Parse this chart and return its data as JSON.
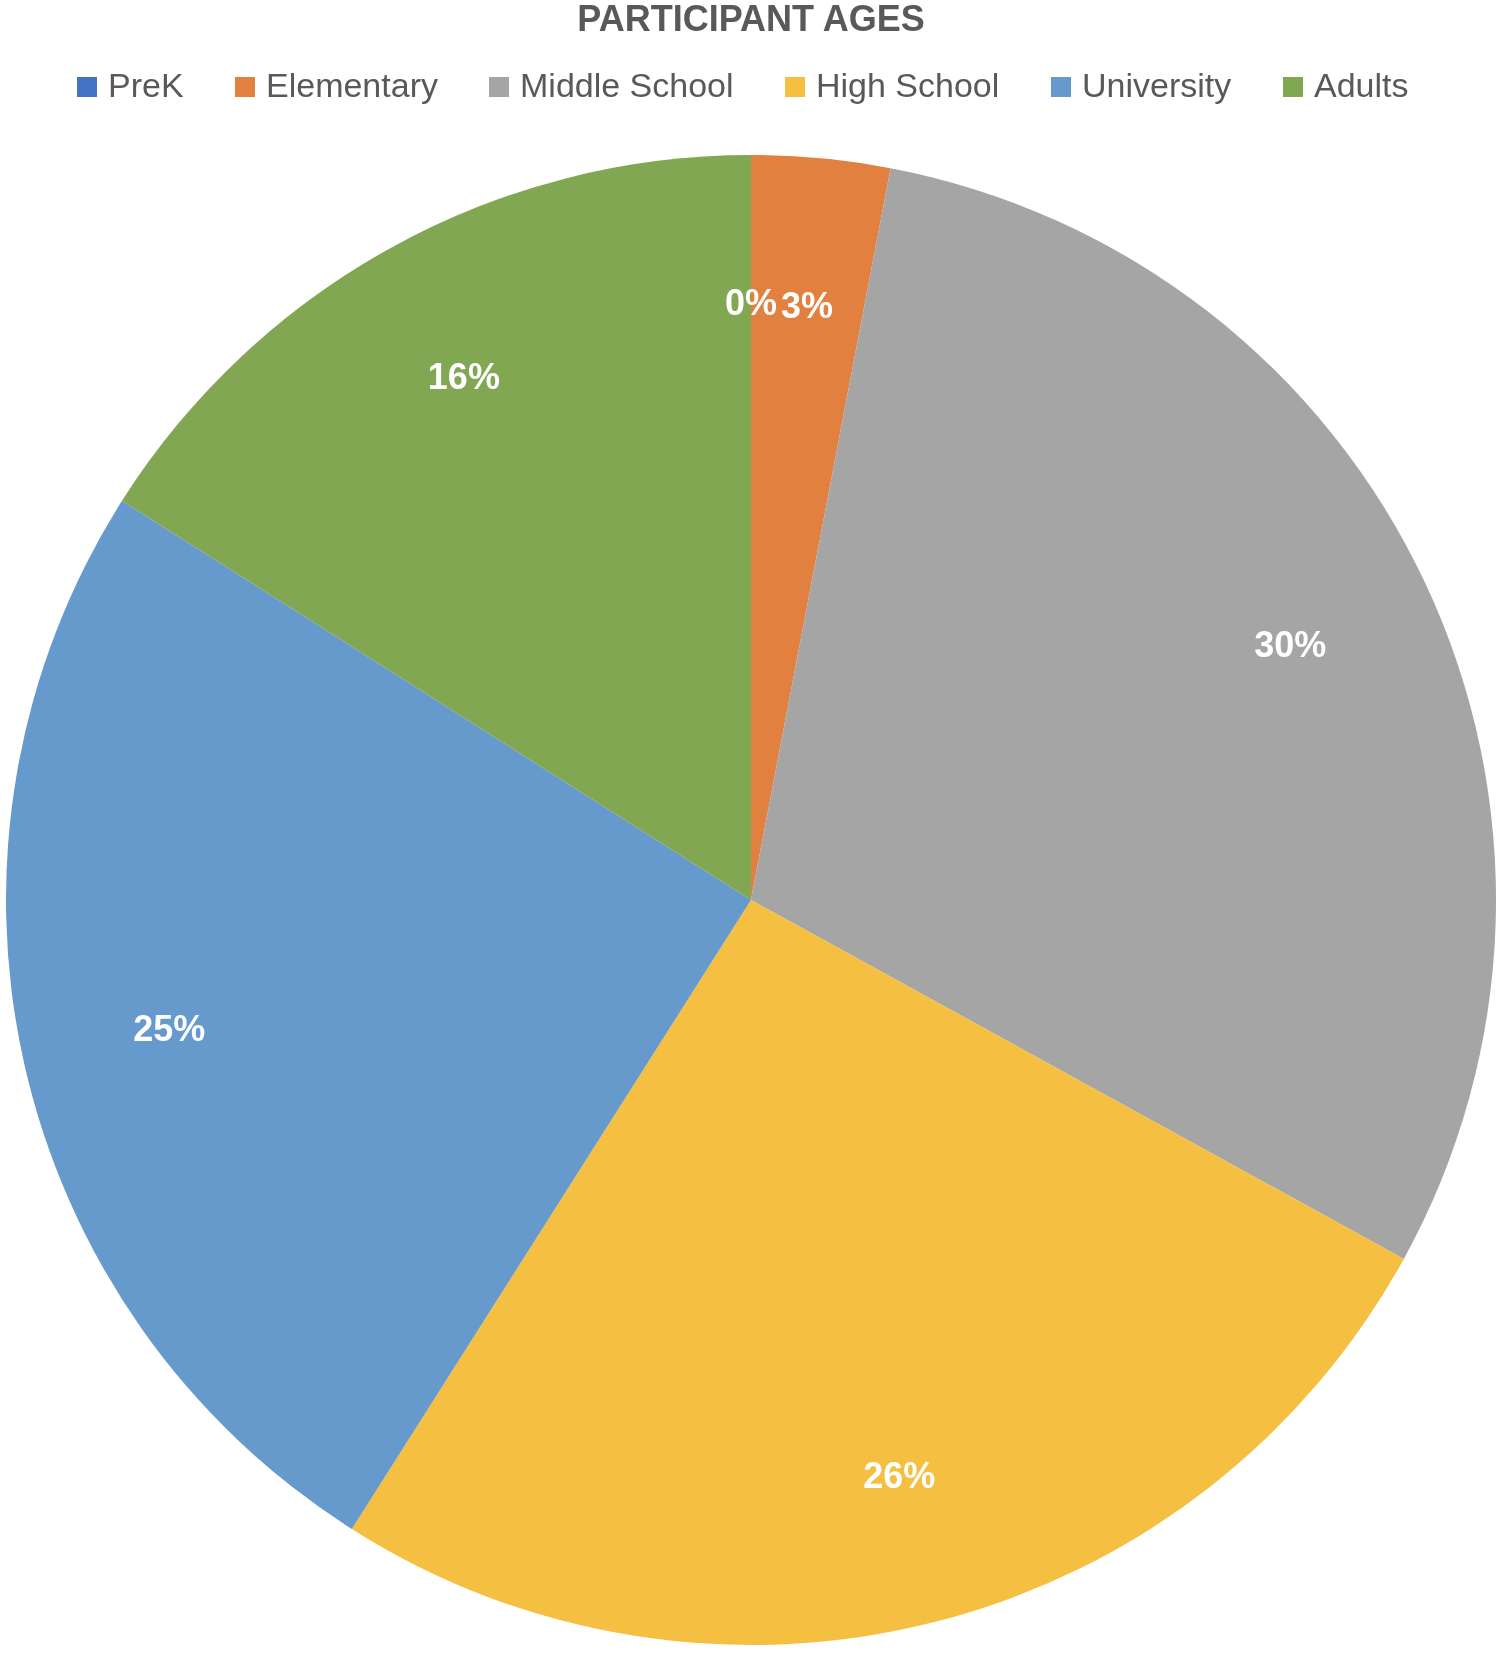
{
  "chart_data": {
    "type": "pie",
    "title": "PARTICIPANT AGES",
    "categories": [
      "PreK",
      "Elementary",
      "Middle School",
      "High School",
      "University",
      "Adults"
    ],
    "values": [
      0,
      3,
      30,
      26,
      25,
      16
    ],
    "value_labels": [
      "0%",
      "3%",
      "30%",
      "26%",
      "25%",
      "16%"
    ],
    "colors": [
      "#4472c4",
      "#e2803f",
      "#a5a5a5",
      "#f5bf42",
      "#6699cc",
      "#82a752"
    ],
    "legend": "top"
  }
}
